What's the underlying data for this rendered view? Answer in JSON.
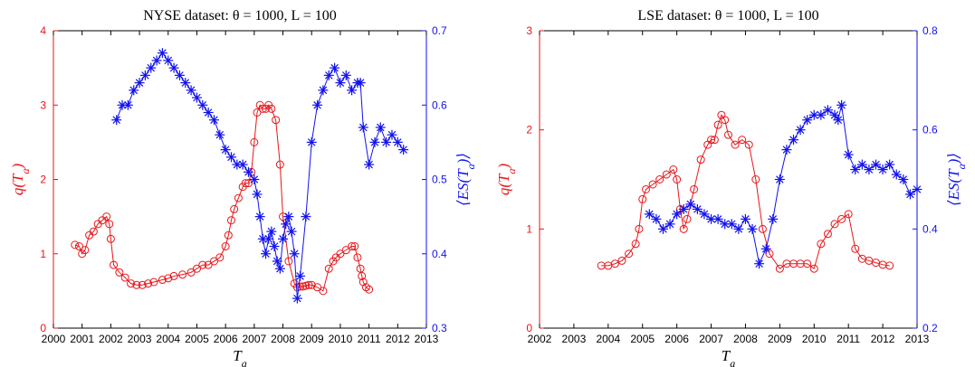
{
  "colors": {
    "left_series": "#e8161a",
    "right_series": "#1212f0",
    "axis": "#000000"
  },
  "chart_data": [
    {
      "type": "line",
      "title": "NYSE dataset: θ = 1000, L = 100",
      "xlabel": "T_a",
      "ylabel_left": "q(T_a)",
      "ylabel_right": "⟨ES(T_a)⟩",
      "xlim": [
        2000,
        2013
      ],
      "ylim_left": [
        0,
        4
      ],
      "ylim_right": [
        0.3,
        0.7
      ],
      "x_ticks": [
        2000,
        2001,
        2002,
        2003,
        2004,
        2005,
        2006,
        2007,
        2008,
        2009,
        2010,
        2011,
        2012,
        2013
      ],
      "y_ticks_left": [
        0,
        1,
        2,
        3,
        4
      ],
      "y_ticks_right": [
        0.3,
        0.4,
        0.5,
        0.6,
        0.7
      ],
      "grid": false,
      "series": [
        {
          "marker": "circle",
          "axis": "left",
          "color": "#e8161a",
          "x": [
            2000.75,
            2000.9,
            2001.0,
            2001.1,
            2001.25,
            2001.4,
            2001.55,
            2001.7,
            2001.85,
            2001.95,
            2002.0,
            2002.1,
            2002.3,
            2002.5,
            2002.7,
            2002.9,
            2003.1,
            2003.3,
            2003.5,
            2003.8,
            2004.0,
            2004.2,
            2004.5,
            2004.8,
            2005.0,
            2005.2,
            2005.4,
            2005.6,
            2005.8,
            2006.0,
            2006.1,
            2006.2,
            2006.3,
            2006.45,
            2006.6,
            2006.7,
            2006.8,
            2006.9,
            2007.0,
            2007.1,
            2007.2,
            2007.3,
            2007.4,
            2007.5,
            2007.6,
            2007.75,
            2007.9,
            2008.0,
            2008.2,
            2008.4,
            2008.5,
            2008.6,
            2008.7,
            2008.8,
            2008.9,
            2009.0,
            2009.2,
            2009.4,
            2009.6,
            2009.75,
            2009.85,
            2010.0,
            2010.2,
            2010.4,
            2010.5,
            2010.6,
            2010.7,
            2010.75,
            2010.8,
            2010.9,
            2011.0
          ],
          "y": [
            1.12,
            1.1,
            1.0,
            1.05,
            1.25,
            1.3,
            1.4,
            1.45,
            1.5,
            1.4,
            1.2,
            0.85,
            0.75,
            0.68,
            0.6,
            0.58,
            0.58,
            0.6,
            0.62,
            0.65,
            0.67,
            0.7,
            0.72,
            0.75,
            0.8,
            0.85,
            0.85,
            0.9,
            0.95,
            1.1,
            1.25,
            1.45,
            1.6,
            1.75,
            1.9,
            1.95,
            1.95,
            2.1,
            2.5,
            2.9,
            3.0,
            2.95,
            2.95,
            3.0,
            2.95,
            2.8,
            2.2,
            1.5,
            0.9,
            0.6,
            0.55,
            0.56,
            0.56,
            0.57,
            0.58,
            0.58,
            0.55,
            0.5,
            0.8,
            0.9,
            0.95,
            1.0,
            1.05,
            1.1,
            1.1,
            0.95,
            0.8,
            0.7,
            0.62,
            0.55,
            0.52
          ]
        },
        {
          "marker": "asterisk",
          "axis": "right",
          "color": "#1212f0",
          "x": [
            2002.2,
            2002.4,
            2002.6,
            2002.8,
            2003.0,
            2003.2,
            2003.4,
            2003.6,
            2003.8,
            2004.0,
            2004.2,
            2004.4,
            2004.6,
            2004.8,
            2005.0,
            2005.2,
            2005.4,
            2005.6,
            2005.8,
            2006.0,
            2006.2,
            2006.4,
            2006.6,
            2006.8,
            2007.0,
            2007.1,
            2007.2,
            2007.3,
            2007.4,
            2007.5,
            2007.6,
            2007.7,
            2007.8,
            2007.9,
            2008.0,
            2008.1,
            2008.2,
            2008.3,
            2008.4,
            2008.5,
            2008.6,
            2008.8,
            2009.0,
            2009.2,
            2009.4,
            2009.6,
            2009.8,
            2010.0,
            2010.2,
            2010.4,
            2010.6,
            2010.7,
            2010.8,
            2011.0,
            2011.2,
            2011.4,
            2011.6,
            2011.8,
            2012.0,
            2012.2
          ],
          "y": [
            0.58,
            0.6,
            0.6,
            0.62,
            0.63,
            0.64,
            0.65,
            0.66,
            0.67,
            0.66,
            0.65,
            0.64,
            0.63,
            0.62,
            0.61,
            0.6,
            0.59,
            0.58,
            0.56,
            0.54,
            0.53,
            0.52,
            0.52,
            0.51,
            0.5,
            0.48,
            0.45,
            0.42,
            0.4,
            0.42,
            0.43,
            0.41,
            0.39,
            0.38,
            0.42,
            0.44,
            0.45,
            0.43,
            0.4,
            0.34,
            0.37,
            0.45,
            0.55,
            0.6,
            0.62,
            0.64,
            0.65,
            0.63,
            0.64,
            0.62,
            0.63,
            0.63,
            0.57,
            0.52,
            0.55,
            0.57,
            0.55,
            0.56,
            0.55,
            0.54
          ]
        }
      ]
    },
    {
      "type": "line",
      "title": "LSE dataset: θ = 1000, L = 100",
      "xlabel": "T_a",
      "ylabel_left": "q(T_a)",
      "ylabel_right": "⟨ES(T_a)⟩",
      "xlim": [
        2002,
        2013
      ],
      "ylim_left": [
        0,
        3
      ],
      "ylim_right": [
        0.2,
        0.8
      ],
      "x_ticks": [
        2002,
        2003,
        2004,
        2005,
        2006,
        2007,
        2008,
        2009,
        2010,
        2011,
        2012,
        2013
      ],
      "y_ticks_left": [
        0,
        1,
        2,
        3
      ],
      "y_ticks_right": [
        0.2,
        0.4,
        0.6,
        0.8
      ],
      "grid": false,
      "series": [
        {
          "marker": "circle",
          "axis": "left",
          "color": "#e8161a",
          "x": [
            2003.8,
            2004.0,
            2004.2,
            2004.4,
            2004.6,
            2004.8,
            2004.9,
            2005.0,
            2005.1,
            2005.3,
            2005.5,
            2005.7,
            2005.9,
            2006.0,
            2006.1,
            2006.2,
            2006.3,
            2006.5,
            2006.7,
            2006.9,
            2007.0,
            2007.1,
            2007.2,
            2007.3,
            2007.4,
            2007.5,
            2007.7,
            2007.9,
            2008.1,
            2008.3,
            2008.5,
            2008.7,
            2009.0,
            2009.2,
            2009.4,
            2009.6,
            2009.8,
            2010.0,
            2010.2,
            2010.4,
            2010.6,
            2010.8,
            2011.0,
            2011.2,
            2011.4,
            2011.6,
            2011.8,
            2012.0,
            2012.2
          ],
          "y": [
            0.63,
            0.63,
            0.65,
            0.68,
            0.75,
            0.85,
            1.0,
            1.3,
            1.4,
            1.45,
            1.5,
            1.55,
            1.6,
            1.5,
            1.2,
            1.0,
            1.1,
            1.4,
            1.7,
            1.85,
            1.9,
            1.9,
            2.05,
            2.15,
            2.1,
            1.95,
            1.85,
            1.9,
            1.85,
            1.5,
            1.0,
            0.75,
            0.6,
            0.65,
            0.65,
            0.65,
            0.65,
            0.6,
            0.85,
            0.95,
            1.05,
            1.1,
            1.15,
            0.8,
            0.7,
            0.68,
            0.66,
            0.64,
            0.63
          ]
        },
        {
          "marker": "asterisk",
          "axis": "right",
          "color": "#1212f0",
          "x": [
            2005.2,
            2005.4,
            2005.6,
            2005.8,
            2006.0,
            2006.2,
            2006.4,
            2006.6,
            2006.8,
            2007.0,
            2007.2,
            2007.4,
            2007.6,
            2007.8,
            2008.0,
            2008.2,
            2008.4,
            2008.6,
            2008.8,
            2009.0,
            2009.2,
            2009.4,
            2009.6,
            2009.8,
            2010.0,
            2010.2,
            2010.4,
            2010.6,
            2010.7,
            2010.8,
            2011.0,
            2011.2,
            2011.4,
            2011.6,
            2011.8,
            2012.0,
            2012.2,
            2012.4,
            2012.6,
            2012.8,
            2013.0
          ],
          "y": [
            0.43,
            0.42,
            0.4,
            0.41,
            0.43,
            0.44,
            0.45,
            0.44,
            0.43,
            0.42,
            0.42,
            0.41,
            0.41,
            0.4,
            0.42,
            0.4,
            0.33,
            0.36,
            0.42,
            0.5,
            0.56,
            0.58,
            0.6,
            0.62,
            0.63,
            0.63,
            0.64,
            0.63,
            0.62,
            0.65,
            0.55,
            0.52,
            0.53,
            0.52,
            0.53,
            0.52,
            0.53,
            0.51,
            0.5,
            0.47,
            0.48
          ]
        }
      ]
    }
  ]
}
